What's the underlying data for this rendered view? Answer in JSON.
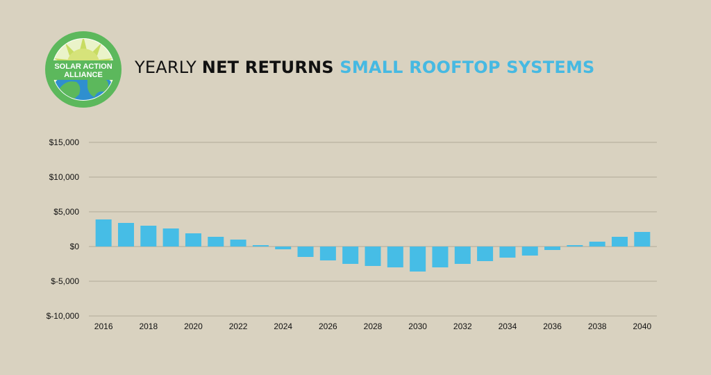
{
  "logo": {
    "line1": "SOLAR ACTION",
    "line2": "ALLIANCE"
  },
  "title": {
    "part1": "YEARLY ",
    "part2": "NET RETURNS",
    "part3": " SMALL ROOFTOP SYSTEMS"
  },
  "colors": {
    "background": "#d9d2c0",
    "bar": "#46bde6",
    "title_accent": "#46b9e2",
    "grid": "#b1aa98"
  },
  "chart_data": {
    "type": "bar",
    "categories": [
      "2016",
      "2017",
      "2018",
      "2019",
      "2020",
      "2021",
      "2022",
      "2023",
      "2024",
      "2025",
      "2026",
      "2027",
      "2028",
      "2029",
      "2030",
      "2031",
      "2032",
      "2033",
      "2034",
      "2035",
      "2036",
      "2037",
      "2038",
      "2039",
      "2040"
    ],
    "values": [
      3900,
      3400,
      3000,
      2600,
      1900,
      1400,
      1000,
      200,
      -400,
      -1500,
      -2000,
      -2500,
      -2800,
      -3000,
      -3600,
      -3000,
      -2500,
      -2100,
      -1600,
      -1300,
      -500,
      200,
      700,
      1400,
      2100
    ],
    "title": "YEARLY NET RETURNS SMALL ROOFTOP SYSTEMS",
    "xlabel": "",
    "ylabel": "",
    "ylim": [
      -10000,
      15000
    ],
    "yticks": [
      15000,
      10000,
      5000,
      0,
      -5000,
      -10000
    ],
    "ytick_labels": [
      "$15,000",
      "$10,000",
      "$5,000",
      "$0",
      "$-5,000",
      "$-10,000"
    ],
    "xtick_labels": [
      "2016",
      "2018",
      "2020",
      "2022",
      "2024",
      "2026",
      "2028",
      "2030",
      "2032",
      "2034",
      "2036",
      "2038",
      "2040"
    ],
    "grid": true
  }
}
